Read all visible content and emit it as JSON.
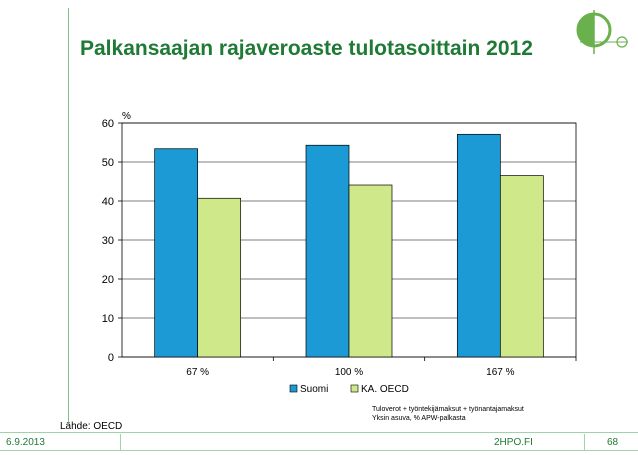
{
  "slide": {
    "title": "Palkansaajan rajaveroaste tulotasoittain 2012",
    "source": "Lähde: OECD",
    "note_line1": "Tuloverot + työntekijämaksut + työnantajamaksut",
    "note_line2": "Yksin asuva, % APW-palkasta",
    "date": "6.9.2013",
    "site": "2HPO.FI",
    "page": "68"
  },
  "colors": {
    "title": "#1e7a34",
    "suomi": "#1b9ad6",
    "oecd": "#cfe88a"
  },
  "chart_data": {
    "type": "bar",
    "ylabel": "%",
    "ylim": [
      0,
      60
    ],
    "yticks": [
      0,
      10,
      20,
      30,
      40,
      50,
      60
    ],
    "grid": true,
    "legend": "bottom",
    "categories": [
      "67 %",
      "100 %",
      "167 %"
    ],
    "series": [
      {
        "name": "Suomi",
        "values": [
          53.4,
          54.3,
          57.1
        ]
      },
      {
        "name": "KA. OECD",
        "values": [
          40.7,
          44.1,
          46.5
        ]
      }
    ]
  }
}
